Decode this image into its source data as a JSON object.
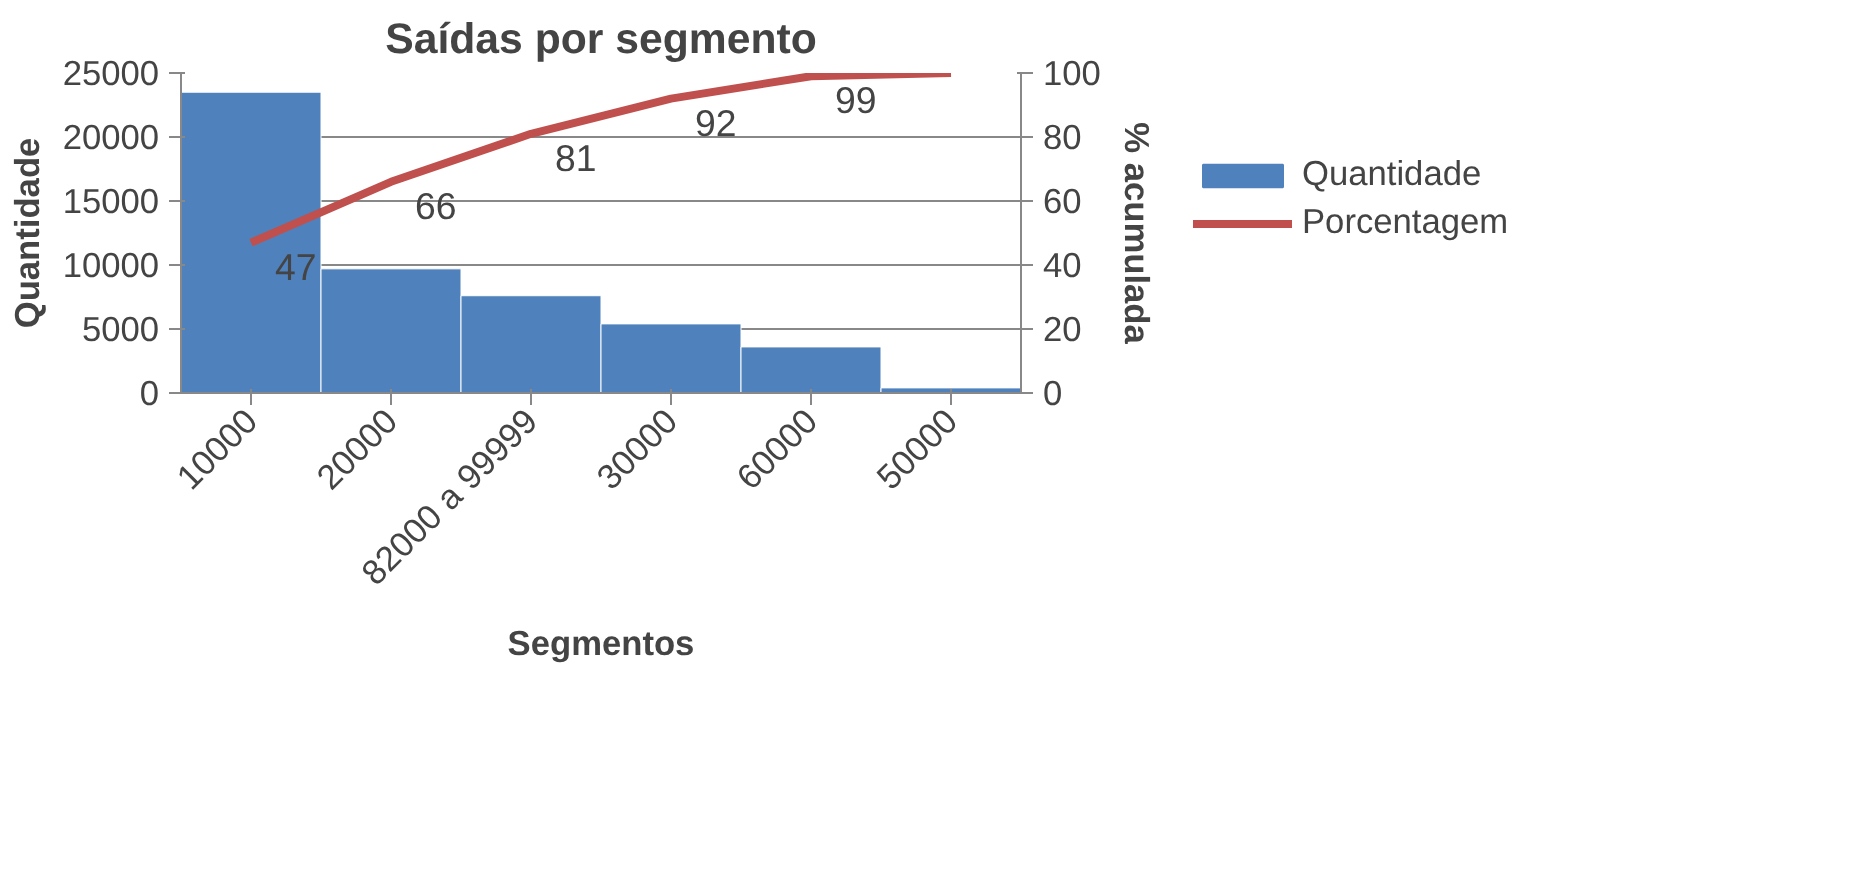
{
  "chart_data": {
    "type": "bar",
    "title": "Saídas por segmento",
    "xlabel": "Segmentos",
    "ylabel": "Quantidade",
    "y2label": "% acumulada",
    "categories": [
      "10000",
      "20000",
      "82000 a 99999",
      "30000",
      "60000",
      "50000"
    ],
    "series": [
      {
        "name": "Quantidade",
        "color": "#4f81bd",
        "values": [
          23500,
          9700,
          7600,
          5400,
          3600,
          400
        ]
      },
      {
        "name": "Porcentagem",
        "type": "line",
        "axis": "y2",
        "color": "#c0504d",
        "values": [
          47,
          66,
          81,
          92,
          99,
          100
        ],
        "value_labels": [
          "47",
          "66",
          "81",
          "92",
          "99",
          null
        ]
      }
    ],
    "ylim": [
      0,
      25000
    ],
    "yticks": [
      0,
      5000,
      10000,
      15000,
      20000,
      25000
    ],
    "y2lim": [
      0,
      100
    ],
    "y2ticks": [
      0,
      20,
      40,
      60,
      80,
      100
    ],
    "grid": "y",
    "legend": "right",
    "marker": "none"
  }
}
